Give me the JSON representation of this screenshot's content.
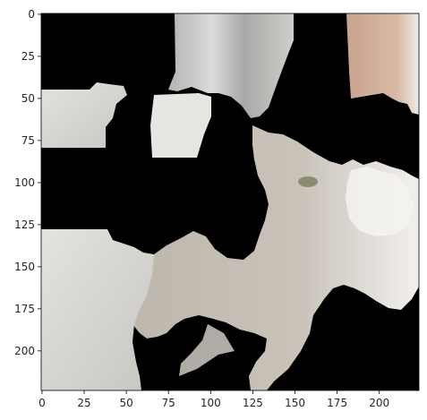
{
  "figure": {
    "image": {
      "description_icon": "masked-cat-photo",
      "background_color": "#000000",
      "palette": {
        "cat_fur": "#b8b3aa",
        "cat_light": "#e9e6e1",
        "wall_light": "#ecebe7",
        "window_tan": "#c7a48f",
        "curtain_grey": "#b9b8b5"
      }
    },
    "axes": {
      "x_ticks": [
        "0",
        "25",
        "50",
        "75",
        "100",
        "125",
        "150",
        "175",
        "200"
      ],
      "y_ticks": [
        "0",
        "25",
        "50",
        "75",
        "100",
        "125",
        "150",
        "175",
        "200"
      ],
      "xlim": [
        -0.5,
        223.5
      ],
      "ylim": [
        223.5,
        -0.5
      ]
    }
  }
}
